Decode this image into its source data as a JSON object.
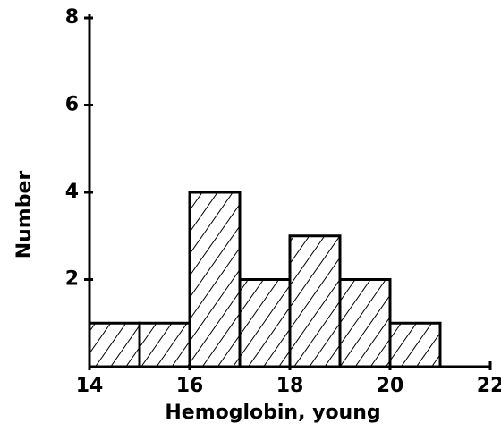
{
  "chart_data": {
    "type": "histogram",
    "x_label": "Hemoglobin, young",
    "y_label": "Number",
    "bins": [
      14,
      15,
      16,
      17,
      18,
      19,
      20,
      21
    ],
    "counts": [
      1,
      1,
      4,
      2,
      3,
      2,
      1
    ],
    "color": "#000000",
    "xlim": [
      14,
      22
    ],
    "xticks": [
      14,
      16,
      18,
      20,
      22
    ],
    "ylim": [
      0,
      8
    ],
    "yticks": [
      2,
      4,
      6,
      8
    ],
    "grid": false
  }
}
